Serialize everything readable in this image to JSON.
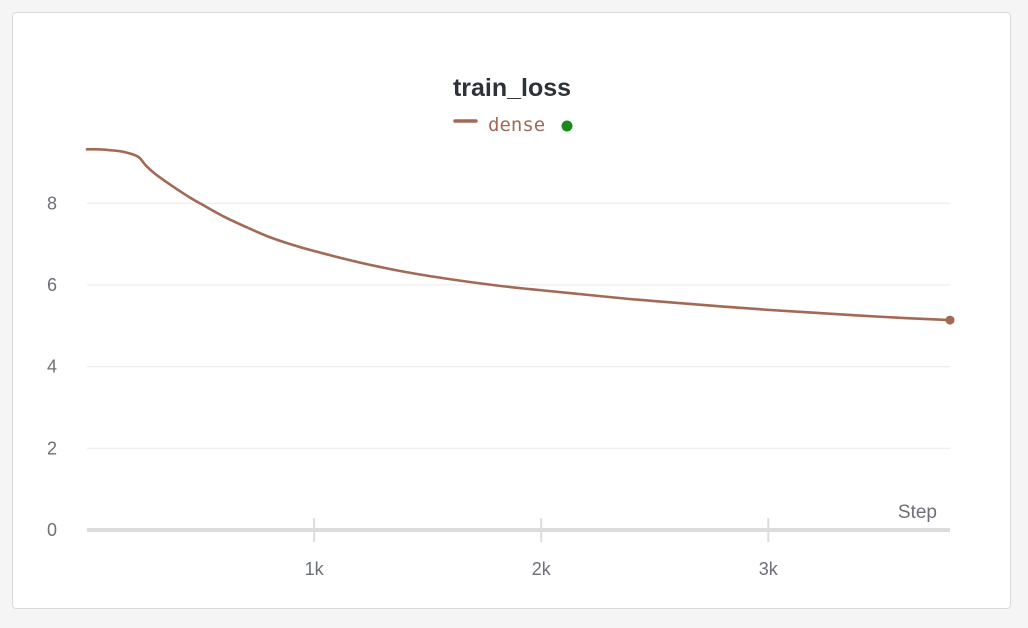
{
  "chart_data": {
    "type": "line",
    "title": "train_loss",
    "xlabel": "Step",
    "ylabel": "",
    "xlim": [
      0,
      3800
    ],
    "ylim": [
      0,
      9.5
    ],
    "x_ticks": [
      {
        "value": 1000,
        "label": "1k"
      },
      {
        "value": 2000,
        "label": "2k"
      },
      {
        "value": 3000,
        "label": "3k"
      }
    ],
    "y_ticks": [
      {
        "value": 0,
        "label": "0"
      },
      {
        "value": 2,
        "label": "2"
      },
      {
        "value": 4,
        "label": "4"
      },
      {
        "value": 6,
        "label": "6"
      },
      {
        "value": 8,
        "label": "8"
      }
    ],
    "grid": true,
    "legend_position": "top-center",
    "series": [
      {
        "name": "dense",
        "color": "#a26a55",
        "status_color": "#1a8a1a",
        "x": [
          0,
          50,
          100,
          150,
          200,
          230,
          260,
          300,
          350,
          400,
          450,
          500,
          600,
          700,
          800,
          900,
          1000,
          1200,
          1400,
          1600,
          1800,
          2000,
          2200,
          2400,
          2600,
          2800,
          3000,
          3200,
          3400,
          3600,
          3800
        ],
        "y": [
          9.32,
          9.32,
          9.3,
          9.27,
          9.2,
          9.12,
          8.92,
          8.72,
          8.52,
          8.33,
          8.15,
          7.99,
          7.68,
          7.42,
          7.18,
          6.99,
          6.83,
          6.55,
          6.32,
          6.14,
          5.99,
          5.87,
          5.76,
          5.65,
          5.56,
          5.47,
          5.39,
          5.32,
          5.25,
          5.19,
          5.14
        ]
      }
    ]
  }
}
